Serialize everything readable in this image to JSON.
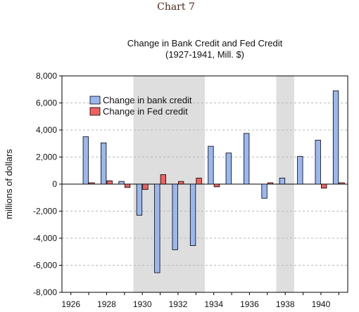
{
  "page_heading": "Chart 7",
  "chart_data": {
    "type": "bar",
    "title": "Change in Bank Credit and Fed Credit",
    "subtitle": "(1927-1941, Mill. $)",
    "xlabel": "",
    "ylabel": "millions of dollars",
    "ylim": [
      -8000,
      8000
    ],
    "yticks": [
      "8,000",
      "6,000",
      "4,000",
      "2,000",
      "0",
      "-2,000",
      "-4,000",
      "-6,000",
      "-8,000"
    ],
    "ytick_values": [
      8000,
      6000,
      4000,
      2000,
      0,
      -2000,
      -4000,
      -6000,
      -8000
    ],
    "xticks": [
      "1926",
      "1928",
      "1930",
      "1932",
      "1934",
      "1936",
      "1938",
      "1940"
    ],
    "xtick_values": [
      1926,
      1928,
      1930,
      1932,
      1934,
      1936,
      1938,
      1940
    ],
    "categories": [
      1927,
      1928,
      1929,
      1930,
      1931,
      1932,
      1933,
      1934,
      1935,
      1936,
      1937,
      1938,
      1939,
      1940,
      1941
    ],
    "series": [
      {
        "name": "Change in bank credit",
        "color": "#9ab7f0",
        "values": [
          3500,
          3050,
          200,
          -2300,
          -6550,
          -4850,
          -4550,
          2800,
          2300,
          3750,
          -1050,
          450,
          2050,
          3250,
          6900
        ]
      },
      {
        "name": "Change in Fed credit",
        "color": "#f06060",
        "values": [
          100,
          250,
          -250,
          -400,
          700,
          200,
          450,
          -200,
          0,
          0,
          100,
          0,
          0,
          -300,
          100
        ]
      }
    ],
    "shaded_periods": [
      [
        1929,
        1933
      ],
      [
        1937,
        1938
      ]
    ],
    "grid": true,
    "legend_placement": "top-left"
  }
}
